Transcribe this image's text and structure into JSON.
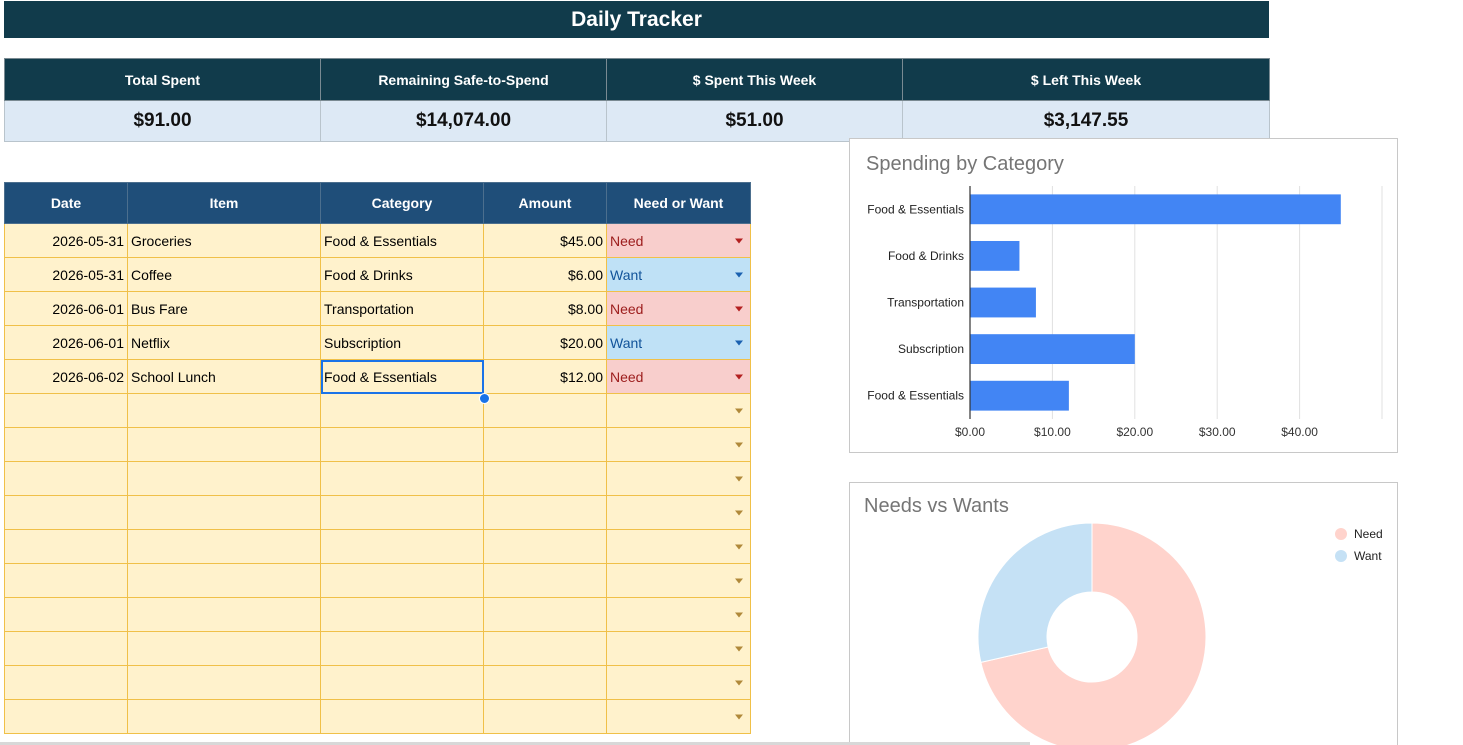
{
  "title": "Daily Tracker",
  "summary": {
    "headers": [
      "Total Spent",
      "Remaining Safe-to-Spend",
      "$ Spent This Week",
      "$ Left This Week"
    ],
    "values": [
      "$91.00",
      "$14,074.00",
      "$51.00",
      "$3,147.55"
    ]
  },
  "table": {
    "headers": [
      "Date",
      "Item",
      "Category",
      "Amount",
      "Need or Want"
    ],
    "rows": [
      {
        "date": "2026-05-31",
        "item": "Groceries",
        "category": "Food & Essentials",
        "amount": "$45.00",
        "type": "Need"
      },
      {
        "date": "2026-05-31",
        "item": "Coffee",
        "category": "Food & Drinks",
        "amount": "$6.00",
        "type": "Want"
      },
      {
        "date": "2026-06-01",
        "item": "Bus Fare",
        "category": "Transportation",
        "amount": "$8.00",
        "type": "Need"
      },
      {
        "date": "2026-06-01",
        "item": "Netflix",
        "category": "Subscription",
        "amount": "$20.00",
        "type": "Want"
      },
      {
        "date": "2026-06-02",
        "item": "School Lunch",
        "category": "Food & Essentials",
        "amount": "$12.00",
        "type": "Need"
      }
    ],
    "empty_rows": 10
  },
  "colors": {
    "header": "#113b4b",
    "table_header": "#1f4e79",
    "need": "#f8cecc",
    "want": "#bfe1f6",
    "bar": "#4285f4"
  },
  "chart_data": [
    {
      "type": "bar",
      "orientation": "horizontal",
      "title": "Spending by Category",
      "categories": [
        "Food & Essentials",
        "Food & Drinks",
        "Transportation",
        "Subscription",
        "Food & Essentials"
      ],
      "values": [
        45,
        6,
        8,
        20,
        12
      ],
      "xlim": [
        0,
        50
      ],
      "ticks": [
        0,
        10,
        20,
        30,
        40
      ],
      "tick_labels": [
        "$0.00",
        "$10.00",
        "$20.00",
        "$30.00",
        "$40.00"
      ],
      "grid": true,
      "color": "#4285f4"
    },
    {
      "type": "pie",
      "donut": true,
      "title": "Needs vs Wants",
      "labels": [
        "Need",
        "Want"
      ],
      "values": [
        65,
        26
      ],
      "colors": [
        "#ffd3cc",
        "#c5e1f5"
      ],
      "legend": "top-right"
    }
  ]
}
